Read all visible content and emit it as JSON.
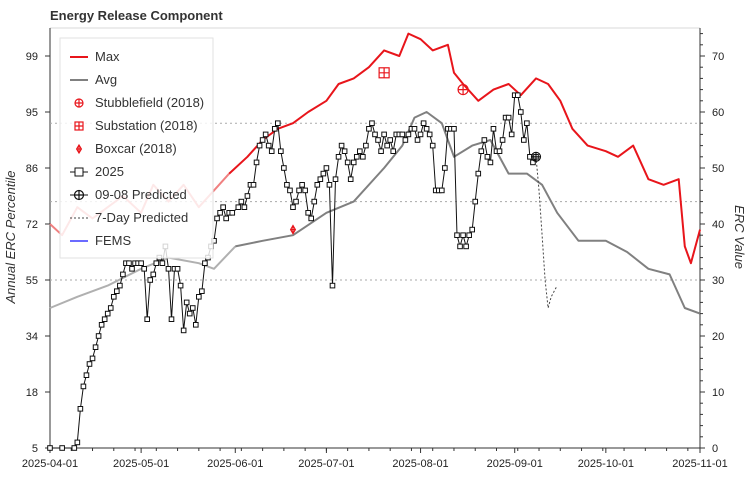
{
  "chart_data": {
    "type": "line",
    "title": "Energy Release Component",
    "ylabel_left": "Annual ERC Percentile",
    "ylabel_right": "ERC Value",
    "x_range": [
      "2025-04-01",
      "2025-11-01"
    ],
    "x_ticks": [
      "2025-04-01",
      "2025-05-01",
      "2025-06-01",
      "2025-07-01",
      "2025-08-01",
      "2025-09-01",
      "2025-10-01",
      "2025-11-01"
    ],
    "y_right_range": [
      0,
      75
    ],
    "y_right_ticks": [
      "0",
      "10",
      "20",
      "30",
      "40",
      "50",
      "60",
      "70"
    ],
    "y_left_ticks": [
      {
        "label": "5",
        "erc": 0
      },
      {
        "label": "18",
        "erc": 10
      },
      {
        "label": "34",
        "erc": 20
      },
      {
        "label": "55",
        "erc": 30
      },
      {
        "label": "72",
        "erc": 40
      },
      {
        "label": "86",
        "erc": 50
      },
      {
        "label": "95",
        "erc": 60
      },
      {
        "label": "99",
        "erc": 70
      }
    ],
    "reference_lines_erc": [
      30,
      44,
      58
    ],
    "legend_position": "top-left",
    "colors": {
      "max": "#e8151b",
      "max_early": "#f08080",
      "avg": "#808080",
      "avg_early": "#b0b0b0",
      "current": "#111111",
      "grid": "#aaaaaa",
      "event": "#e8151b",
      "fems": "#6b6bff"
    },
    "legend": [
      {
        "label": "Max",
        "style": "line-red"
      },
      {
        "label": "Avg",
        "style": "line-gray"
      },
      {
        "label": "Stubblefield (2018)",
        "style": "marker-circle-plus"
      },
      {
        "label": "Substation (2018)",
        "style": "marker-square-plus"
      },
      {
        "label": "Boxcar (2018)",
        "style": "marker-diamond-plus"
      },
      {
        "label": "2025",
        "style": "line-square"
      },
      {
        "label": "09-08 Predicted",
        "style": "line-circle-plus"
      },
      {
        "label": "7-Day Predicted",
        "style": "dotted"
      },
      {
        "label": "FEMS",
        "style": "line-blue"
      }
    ],
    "series": {
      "max": [
        [
          "2025-04-01",
          40
        ],
        [
          "2025-04-05",
          38
        ],
        [
          "2025-04-10",
          43
        ],
        [
          "2025-04-15",
          41
        ],
        [
          "2025-04-20",
          43
        ],
        [
          "2025-04-25",
          45
        ],
        [
          "2025-05-01",
          42
        ],
        [
          "2025-05-05",
          47
        ],
        [
          "2025-05-10",
          44
        ],
        [
          "2025-05-15",
          47
        ],
        [
          "2025-05-20",
          43
        ],
        [
          "2025-05-25",
          46
        ],
        [
          "2025-05-30",
          49
        ],
        [
          "2025-06-05",
          52
        ],
        [
          "2025-06-10",
          55
        ],
        [
          "2025-06-15",
          57
        ],
        [
          "2025-06-20",
          58
        ],
        [
          "2025-06-25",
          60
        ],
        [
          "2025-07-01",
          62
        ],
        [
          "2025-07-05",
          65
        ],
        [
          "2025-07-10",
          66
        ],
        [
          "2025-07-15",
          68
        ],
        [
          "2025-07-20",
          71
        ],
        [
          "2025-07-25",
          70
        ],
        [
          "2025-07-28",
          74
        ],
        [
          "2025-08-01",
          73
        ],
        [
          "2025-08-05",
          71
        ],
        [
          "2025-08-10",
          72
        ],
        [
          "2025-08-12",
          67
        ],
        [
          "2025-08-15",
          65
        ],
        [
          "2025-08-20",
          62
        ],
        [
          "2025-08-25",
          64
        ],
        [
          "2025-08-30",
          65
        ],
        [
          "2025-09-03",
          63
        ],
        [
          "2025-09-08",
          66
        ],
        [
          "2025-09-12",
          65
        ],
        [
          "2025-09-16",
          62
        ],
        [
          "2025-09-20",
          57
        ],
        [
          "2025-09-25",
          54
        ],
        [
          "2025-10-01",
          53
        ],
        [
          "2025-10-05",
          52
        ],
        [
          "2025-10-10",
          54
        ],
        [
          "2025-10-15",
          48
        ],
        [
          "2025-10-20",
          47
        ],
        [
          "2025-10-25",
          48
        ],
        [
          "2025-10-27",
          36
        ],
        [
          "2025-10-29",
          33
        ],
        [
          "2025-11-01",
          39
        ]
      ],
      "avg": [
        [
          "2025-04-01",
          25
        ],
        [
          "2025-04-10",
          27
        ],
        [
          "2025-04-20",
          29
        ],
        [
          "2025-05-01",
          32
        ],
        [
          "2025-05-10",
          34
        ],
        [
          "2025-05-20",
          33
        ],
        [
          "2025-05-25",
          32
        ],
        [
          "2025-06-01",
          36
        ],
        [
          "2025-06-10",
          37
        ],
        [
          "2025-06-20",
          38
        ],
        [
          "2025-07-01",
          42
        ],
        [
          "2025-07-10",
          44
        ],
        [
          "2025-07-20",
          50
        ],
        [
          "2025-07-26",
          54
        ],
        [
          "2025-07-30",
          59
        ],
        [
          "2025-08-03",
          60
        ],
        [
          "2025-08-08",
          58
        ],
        [
          "2025-08-12",
          52
        ],
        [
          "2025-08-18",
          54
        ],
        [
          "2025-08-24",
          55
        ],
        [
          "2025-08-30",
          49
        ],
        [
          "2025-09-05",
          49
        ],
        [
          "2025-09-10",
          47
        ],
        [
          "2025-09-15",
          42
        ],
        [
          "2025-09-22",
          37
        ],
        [
          "2025-10-01",
          37
        ],
        [
          "2025-10-08",
          35
        ],
        [
          "2025-10-15",
          32
        ],
        [
          "2025-10-22",
          31
        ],
        [
          "2025-10-27",
          25
        ],
        [
          "2025-11-01",
          24
        ]
      ],
      "current_2025": [
        [
          "2025-04-01",
          0
        ],
        [
          "2025-04-05",
          0
        ],
        [
          "2025-04-09",
          0
        ],
        [
          "2025-04-10",
          1
        ],
        [
          "2025-04-11",
          7
        ],
        [
          "2025-04-12",
          11
        ],
        [
          "2025-04-13",
          13
        ],
        [
          "2025-04-14",
          15
        ],
        [
          "2025-04-15",
          16
        ],
        [
          "2025-04-16",
          18
        ],
        [
          "2025-04-17",
          20
        ],
        [
          "2025-04-18",
          22
        ],
        [
          "2025-04-19",
          23
        ],
        [
          "2025-04-20",
          24
        ],
        [
          "2025-04-21",
          25
        ],
        [
          "2025-04-22",
          27
        ],
        [
          "2025-04-23",
          28
        ],
        [
          "2025-04-24",
          29
        ],
        [
          "2025-04-25",
          31
        ],
        [
          "2025-04-26",
          33
        ],
        [
          "2025-04-27",
          33
        ],
        [
          "2025-04-28",
          32
        ],
        [
          "2025-04-29",
          33
        ],
        [
          "2025-04-30",
          33
        ],
        [
          "2025-05-01",
          33
        ],
        [
          "2025-05-02",
          32
        ],
        [
          "2025-05-03",
          23
        ],
        [
          "2025-05-04",
          30
        ],
        [
          "2025-05-05",
          31
        ],
        [
          "2025-05-06",
          33
        ],
        [
          "2025-05-07",
          34
        ],
        [
          "2025-05-08",
          33
        ],
        [
          "2025-05-09",
          36
        ],
        [
          "2025-05-10",
          32
        ],
        [
          "2025-05-11",
          23
        ],
        [
          "2025-05-12",
          32
        ],
        [
          "2025-05-13",
          32
        ],
        [
          "2025-05-14",
          29
        ],
        [
          "2025-05-15",
          21
        ],
        [
          "2025-05-16",
          26
        ],
        [
          "2025-05-17",
          24
        ],
        [
          "2025-05-18",
          25
        ],
        [
          "2025-05-19",
          22
        ],
        [
          "2025-05-20",
          27
        ],
        [
          "2025-05-21",
          28
        ],
        [
          "2025-05-22",
          33
        ],
        [
          "2025-05-23",
          34
        ],
        [
          "2025-05-24",
          36
        ],
        [
          "2025-05-25",
          37
        ],
        [
          "2025-05-26",
          41
        ],
        [
          "2025-05-27",
          42
        ],
        [
          "2025-05-28",
          43
        ],
        [
          "2025-05-29",
          41
        ],
        [
          "2025-05-30",
          42
        ],
        [
          "2025-05-31",
          42
        ],
        [
          "2025-06-02",
          43
        ],
        [
          "2025-06-03",
          44
        ],
        [
          "2025-06-04",
          43
        ],
        [
          "2025-06-05",
          45
        ],
        [
          "2025-06-06",
          47
        ],
        [
          "2025-06-07",
          47
        ],
        [
          "2025-06-08",
          51
        ],
        [
          "2025-06-09",
          54
        ],
        [
          "2025-06-10",
          55
        ],
        [
          "2025-06-11",
          56
        ],
        [
          "2025-06-12",
          54
        ],
        [
          "2025-06-13",
          53
        ],
        [
          "2025-06-14",
          57
        ],
        [
          "2025-06-15",
          58
        ],
        [
          "2025-06-16",
          53
        ],
        [
          "2025-06-17",
          50
        ],
        [
          "2025-06-18",
          47
        ],
        [
          "2025-06-19",
          46
        ],
        [
          "2025-06-20",
          43
        ],
        [
          "2025-06-21",
          44
        ],
        [
          "2025-06-22",
          46
        ],
        [
          "2025-06-23",
          47
        ],
        [
          "2025-06-24",
          46
        ],
        [
          "2025-06-25",
          42
        ],
        [
          "2025-06-26",
          41
        ],
        [
          "2025-06-27",
          44
        ],
        [
          "2025-06-28",
          47
        ],
        [
          "2025-06-29",
          48
        ],
        [
          "2025-06-30",
          49
        ],
        [
          "2025-07-01",
          50
        ],
        [
          "2025-07-02",
          47
        ],
        [
          "2025-07-03",
          29
        ],
        [
          "2025-07-04",
          48
        ],
        [
          "2025-07-05",
          52
        ],
        [
          "2025-07-06",
          54
        ],
        [
          "2025-07-07",
          53
        ],
        [
          "2025-07-08",
          51
        ],
        [
          "2025-07-09",
          48
        ],
        [
          "2025-07-10",
          51
        ],
        [
          "2025-07-11",
          52
        ],
        [
          "2025-07-12",
          53
        ],
        [
          "2025-07-13",
          52
        ],
        [
          "2025-07-14",
          54
        ],
        [
          "2025-07-15",
          57
        ],
        [
          "2025-07-16",
          58
        ],
        [
          "2025-07-17",
          56
        ],
        [
          "2025-07-18",
          55
        ],
        [
          "2025-07-19",
          53
        ],
        [
          "2025-07-20",
          56
        ],
        [
          "2025-07-21",
          54
        ],
        [
          "2025-07-22",
          55
        ],
        [
          "2025-07-23",
          53
        ],
        [
          "2025-07-24",
          56
        ],
        [
          "2025-07-25",
          56
        ],
        [
          "2025-07-26",
          56
        ],
        [
          "2025-07-27",
          55
        ],
        [
          "2025-07-28",
          56
        ],
        [
          "2025-07-29",
          57
        ],
        [
          "2025-07-30",
          57
        ],
        [
          "2025-07-31",
          55
        ],
        [
          "2025-08-01",
          56
        ],
        [
          "2025-08-02",
          58
        ],
        [
          "2025-08-03",
          57
        ],
        [
          "2025-08-04",
          56
        ],
        [
          "2025-08-05",
          54
        ],
        [
          "2025-08-06",
          46
        ],
        [
          "2025-08-07",
          46
        ],
        [
          "2025-08-08",
          46
        ],
        [
          "2025-08-09",
          50
        ],
        [
          "2025-08-10",
          57
        ],
        [
          "2025-08-11",
          57
        ],
        [
          "2025-08-12",
          57
        ],
        [
          "2025-08-13",
          38
        ],
        [
          "2025-08-14",
          36
        ],
        [
          "2025-08-15",
          38
        ],
        [
          "2025-08-16",
          36
        ],
        [
          "2025-08-17",
          38
        ],
        [
          "2025-08-18",
          39
        ],
        [
          "2025-08-19",
          44
        ],
        [
          "2025-08-20",
          49
        ],
        [
          "2025-08-21",
          53
        ],
        [
          "2025-08-22",
          55
        ],
        [
          "2025-08-23",
          52
        ],
        [
          "2025-08-24",
          51
        ],
        [
          "2025-08-25",
          57
        ],
        [
          "2025-08-26",
          53
        ],
        [
          "2025-08-27",
          53
        ],
        [
          "2025-08-28",
          55
        ],
        [
          "2025-08-29",
          59
        ],
        [
          "2025-08-30",
          59
        ],
        [
          "2025-08-31",
          56
        ],
        [
          "2025-09-01",
          63
        ],
        [
          "2025-09-02",
          63
        ],
        [
          "2025-09-03",
          60
        ],
        [
          "2025-09-04",
          55
        ],
        [
          "2025-09-05",
          58
        ],
        [
          "2025-09-06",
          52
        ],
        [
          "2025-09-07",
          51
        ],
        [
          "2025-09-08",
          52
        ]
      ],
      "predicted_7day": [
        [
          "2025-09-08",
          52
        ],
        [
          "2025-09-09",
          46
        ],
        [
          "2025-09-10",
          38
        ],
        [
          "2025-09-11",
          30
        ],
        [
          "2025-09-12",
          25
        ],
        [
          "2025-09-13",
          27
        ],
        [
          "2025-09-15",
          29
        ]
      ],
      "events": [
        {
          "name": "Stubblefield (2018)",
          "marker": "circle-plus",
          "date": "2025-08-15",
          "erc": 64
        },
        {
          "name": "Substation (2018)",
          "marker": "square-plus",
          "date": "2025-07-20",
          "erc": 67
        },
        {
          "name": "Boxcar (2018)",
          "marker": "diamond-plus",
          "date": "2025-06-20",
          "erc": 39
        }
      ],
      "predicted_0908": {
        "date": "2025-09-08",
        "erc": 52
      }
    }
  }
}
